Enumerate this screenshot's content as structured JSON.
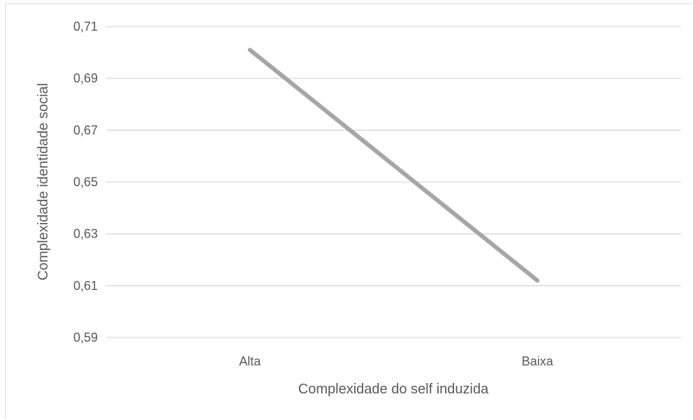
{
  "chart_data": {
    "type": "line",
    "categories": [
      "Alta",
      "Baixa"
    ],
    "series": [
      {
        "values": [
          0.701,
          0.612
        ],
        "color": "#a6a6a6"
      }
    ],
    "ylim": [
      0.59,
      0.71
    ],
    "yticks": [
      "0,71",
      "0,69",
      "0,67",
      "0,65",
      "0,63",
      "0,61",
      "0,59"
    ],
    "ytick_values": [
      0.71,
      0.69,
      0.67,
      0.65,
      0.63,
      0.61,
      0.59
    ],
    "xlabel": "Complexidade do self induzida",
    "ylabel": "Complexidade identidade social",
    "grid": true,
    "gridline_color": "#d9d9d9",
    "legend": "none"
  }
}
